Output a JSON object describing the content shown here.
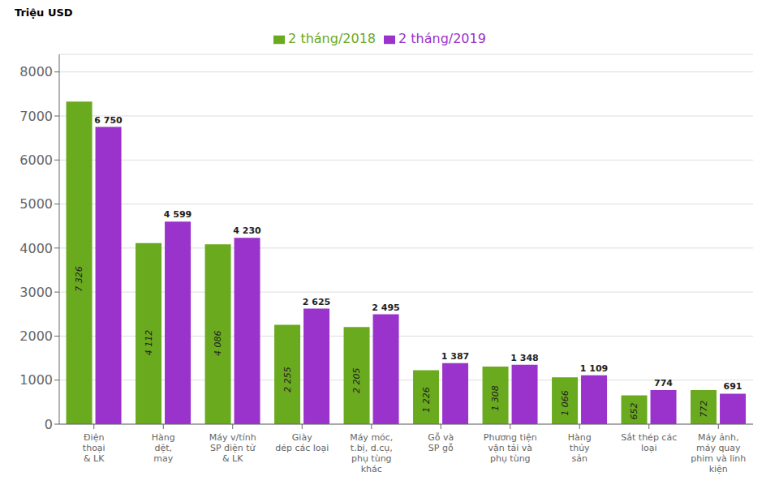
{
  "chart_data": {
    "type": "bar",
    "ylabel": "Triệu USD",
    "categories": [
      "Điện\nthoại\n& LK",
      "Hàng\ndệt,\nmay",
      "Máy v/tính\nSP điện tử\n& LK",
      "Giày\ndép các loại",
      "Máy móc,\nt.bị, d.cụ,\nphụ tùng\nkhác",
      "Gỗ và\nSP gỗ",
      "Phương tiện\nvận tải và\nphụ tùng",
      "Hàng\nthủy\nsản",
      "Sắt thép các\nloại",
      "Máy ảnh,\nmáy quay\nphim và linh\nkiện"
    ],
    "series": [
      {
        "name": "2 tháng/2018",
        "color": "#6aaa1e",
        "values": [
          7326,
          4112,
          4086,
          2255,
          2205,
          1226,
          1308,
          1066,
          652,
          772
        ],
        "value_labels": [
          "7 326",
          "4 112",
          "4 086",
          "2 255",
          "2 205",
          "1 226",
          "1 308",
          "1 066",
          "652",
          "772"
        ]
      },
      {
        "name": "2 tháng/2019",
        "color": "#9933cc",
        "values": [
          6750,
          4599,
          4230,
          2625,
          2495,
          1387,
          1348,
          1109,
          774,
          691
        ],
        "value_labels": [
          "6 750",
          "4 599",
          "4 230",
          "2 625",
          "2 495",
          "1 387",
          "1 348",
          "1 109",
          "774",
          "691"
        ]
      }
    ],
    "ylim": [
      0,
      8400
    ],
    "yticks": [
      0,
      1000,
      2000,
      3000,
      4000,
      5000,
      6000,
      7000,
      8000
    ],
    "grid": true,
    "legend": "top",
    "data_labels": true
  }
}
